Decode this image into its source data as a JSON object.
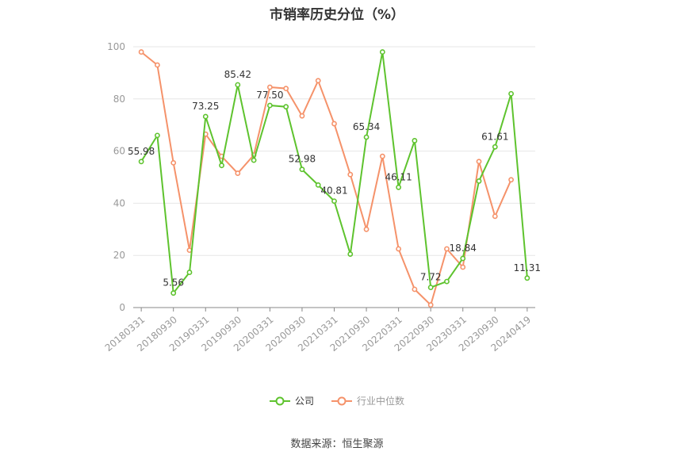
{
  "title": "市销率历史分位（%）",
  "source": "数据来源：恒生聚源",
  "legend": [
    {
      "label": "公司",
      "color": "#5ec32e"
    },
    {
      "label": "行业中位数",
      "color": "#f5926a"
    }
  ],
  "chart_data": {
    "type": "line",
    "title": "市销率历史分位（%）",
    "ylim": [
      0,
      100
    ],
    "yticks": [
      0,
      20,
      40,
      60,
      80,
      100
    ],
    "grid": true,
    "legend_position": "bottom",
    "x": [
      "20180331",
      "20180630",
      "20180930",
      "20181231",
      "20190331",
      "20190630",
      "20190930",
      "20191231",
      "20200331",
      "20200630",
      "20200930",
      "20201231",
      "20210331",
      "20210630",
      "20210930",
      "20211231",
      "20220331",
      "20220630",
      "20220930",
      "20221231",
      "20230331",
      "20230630",
      "20230930",
      "20231231",
      "20240419"
    ],
    "x_tick_labels": [
      "20180331",
      "20180930",
      "20190331",
      "20190930",
      "20200331",
      "20200930",
      "20210331",
      "20210930",
      "20220331",
      "20220930",
      "20230331",
      "20230930",
      "20240419"
    ],
    "series": [
      {
        "name": "公司",
        "color": "#5ec32e",
        "values": [
          55.98,
          66.0,
          5.56,
          13.5,
          73.25,
          54.5,
          85.42,
          56.5,
          77.5,
          77.0,
          52.98,
          47.0,
          40.81,
          20.5,
          65.34,
          98.0,
          46.11,
          64.0,
          7.72,
          10.0,
          18.84,
          48.5,
          61.61,
          82.0,
          11.31
        ],
        "point_labels": {
          "0": "55.98",
          "2": "5.56",
          "4": "73.25",
          "6": "85.42",
          "8": "77.50",
          "10": "52.98",
          "12": "40.81",
          "14": "65.34",
          "16": "46.11",
          "18": "7.72",
          "20": "18.84",
          "22": "61.61",
          "24": "11.31"
        }
      },
      {
        "name": "行业中位数",
        "color": "#f5926a",
        "values": [
          98.0,
          93.0,
          55.5,
          22.0,
          66.5,
          58.0,
          51.5,
          58.5,
          84.5,
          84.0,
          73.5,
          87.0,
          70.5,
          51.0,
          30.0,
          58.0,
          22.5,
          7.0,
          1.0,
          22.5,
          15.5,
          56.0,
          35.0,
          49.0,
          null
        ]
      }
    ]
  }
}
